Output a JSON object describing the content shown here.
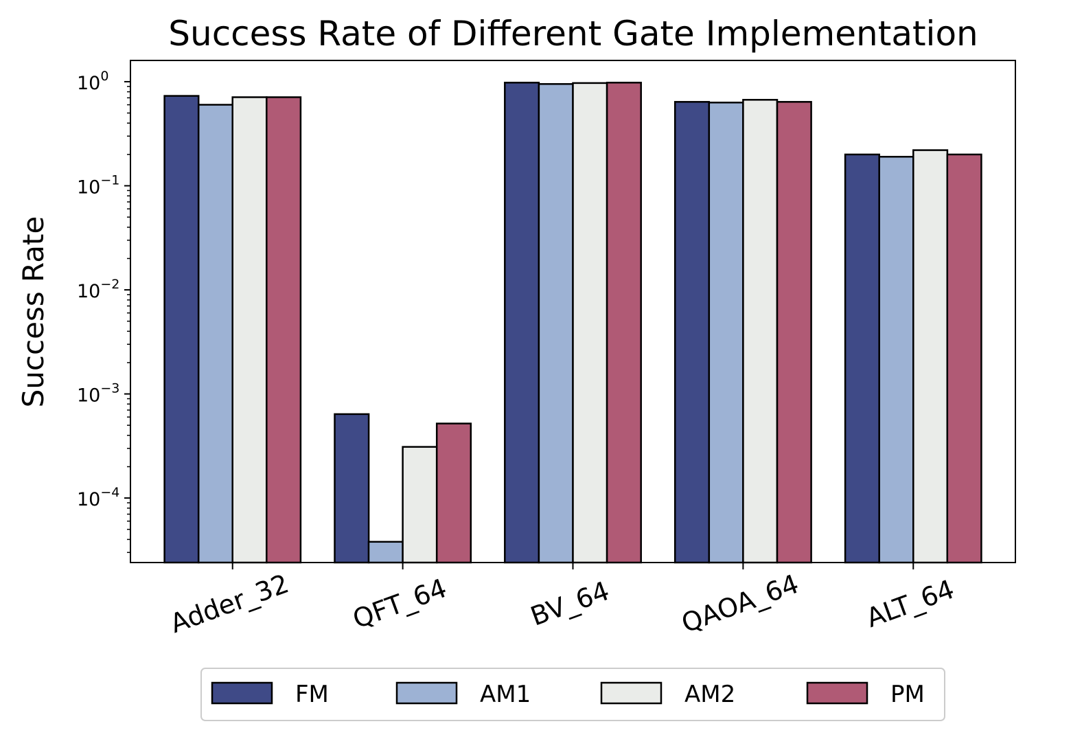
{
  "chart_data": {
    "type": "bar",
    "title": "Success Rate of Different Gate Implementation",
    "xlabel": "",
    "ylabel": "Success Rate",
    "yscale": "log",
    "ylim": [
      2.4e-05,
      1.6
    ],
    "yticks": [
      {
        "value": 0.0001,
        "base": "10",
        "exp": "−4"
      },
      {
        "value": 0.001,
        "base": "10",
        "exp": "−3"
      },
      {
        "value": 0.01,
        "base": "10",
        "exp": "−2"
      },
      {
        "value": 0.1,
        "base": "10",
        "exp": "−1"
      },
      {
        "value": 1,
        "base": "10",
        "exp": "0"
      }
    ],
    "categories": [
      "Adder_32",
      "QFT_64",
      "BV_64",
      "QAOA_64",
      "ALT_64"
    ],
    "series": [
      {
        "name": "FM",
        "color": "#3f4a87",
        "values": [
          0.73,
          0.00064,
          0.98,
          0.64,
          0.2
        ]
      },
      {
        "name": "AM1",
        "color": "#9db2d4",
        "values": [
          0.6,
          3.8e-05,
          0.95,
          0.63,
          0.19
        ]
      },
      {
        "name": "AM2",
        "color": "#eaece9",
        "values": [
          0.71,
          0.00031,
          0.97,
          0.67,
          0.22
        ]
      },
      {
        "name": "PM",
        "color": "#b05a75",
        "values": [
          0.71,
          0.00052,
          0.98,
          0.64,
          0.2
        ]
      }
    ],
    "legend_position": "bottom-center",
    "grid": false
  }
}
